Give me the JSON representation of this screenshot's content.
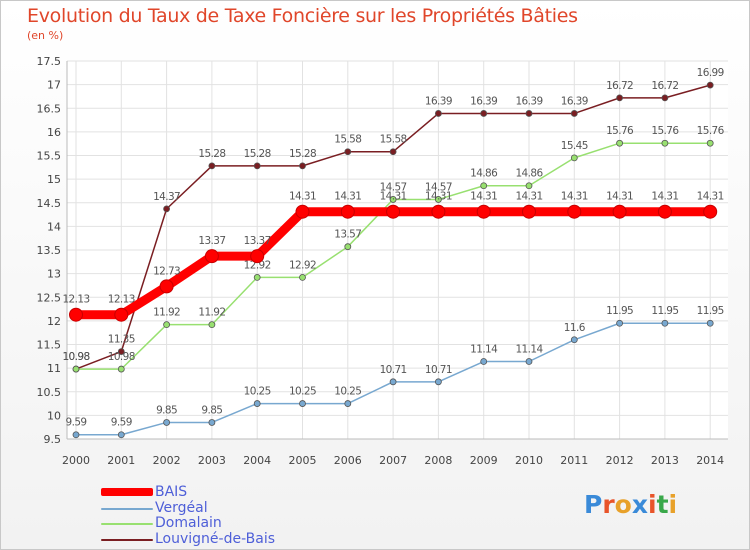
{
  "title": "Evolution du Taux de Taxe Foncière sur les Propriétés Bâties",
  "subtitle": "(en %)",
  "logo": {
    "letters": [
      "P",
      "r",
      "o",
      "x",
      "i",
      "t",
      "i"
    ],
    "colors": [
      "#3a8ad8",
      "#e8542a",
      "#e8a12a",
      "#3a8ad8",
      "#e8542a",
      "#3aa84a",
      "#e8a12a"
    ]
  },
  "chart_data": {
    "type": "line",
    "categories": [
      "2000",
      "2001",
      "2002",
      "2003",
      "2004",
      "2005",
      "2006",
      "2007",
      "2008",
      "2009",
      "2010",
      "2011",
      "2012",
      "2013",
      "2014"
    ],
    "ylim": [
      9.5,
      17.5
    ],
    "yticks": [
      "9.5",
      "10",
      "10.5",
      "11",
      "11.5",
      "12",
      "12.5",
      "13",
      "13.5",
      "14",
      "14.5",
      "15",
      "15.5",
      "16",
      "16.5",
      "17",
      "17.5"
    ],
    "grid": true,
    "legend_position": "bottom-left",
    "series": [
      {
        "name": "Louvigné-de-Bais",
        "color": "#7a1e22",
        "values": [
          10.98,
          11.35,
          14.37,
          15.28,
          15.28,
          15.28,
          15.58,
          15.58,
          16.39,
          16.39,
          16.39,
          16.39,
          16.72,
          16.72,
          16.99
        ],
        "labels": [
          "10.98",
          "11.35",
          "14.37",
          "15.28",
          "15.28",
          "15.28",
          "15.58",
          "15.58",
          "16.39",
          "16.39",
          "16.39",
          "16.39",
          "16.72",
          "16.72",
          "16.99"
        ]
      },
      {
        "name": "Domalain",
        "color": "#98e070",
        "values": [
          10.98,
          10.98,
          11.92,
          11.92,
          12.92,
          12.92,
          13.57,
          14.57,
          14.57,
          14.86,
          14.86,
          15.45,
          15.76,
          15.76,
          15.76
        ],
        "labels": [
          "10.98",
          "10.98",
          "11.92",
          "11.92",
          "12.92",
          "12.92",
          "13.57",
          "14.57",
          "14.57",
          "14.86",
          "14.86",
          "15.45",
          "15.76",
          "15.76",
          "15.76"
        ]
      },
      {
        "name": "Vergéal",
        "color": "#78a8d0",
        "values": [
          9.59,
          9.59,
          9.85,
          9.85,
          10.25,
          10.25,
          10.25,
          10.71,
          10.71,
          11.14,
          11.14,
          11.6,
          11.95,
          11.95,
          11.95
        ],
        "labels": [
          "9.59",
          "9.59",
          "9.85",
          "9.85",
          "10.25",
          "10.25",
          "10.25",
          "10.71",
          "10.71",
          "11.14",
          "11.14",
          "11.6",
          "11.95",
          "11.95",
          "11.95"
        ]
      },
      {
        "name": "BAIS",
        "color": "#ff0000",
        "values": [
          12.13,
          12.13,
          12.73,
          13.37,
          13.37,
          14.31,
          14.31,
          14.31,
          14.31,
          14.31,
          14.31,
          14.31,
          14.31,
          14.31,
          14.31
        ],
        "labels": [
          "12.13",
          "12.13",
          "12.73",
          "13.37",
          "13.37",
          "14.31",
          "14.31",
          "14.31",
          "14.31",
          "14.31",
          "14.31",
          "14.31",
          "14.31",
          "14.31",
          "14.31"
        ]
      }
    ]
  },
  "legend": [
    {
      "name": "BAIS",
      "color": "#ff0000"
    },
    {
      "name": "Vergéal",
      "color": "#78a8d0"
    },
    {
      "name": "Domalain",
      "color": "#98e070"
    },
    {
      "name": "Louvigné-de-Bais",
      "color": "#7a1e22"
    }
  ]
}
